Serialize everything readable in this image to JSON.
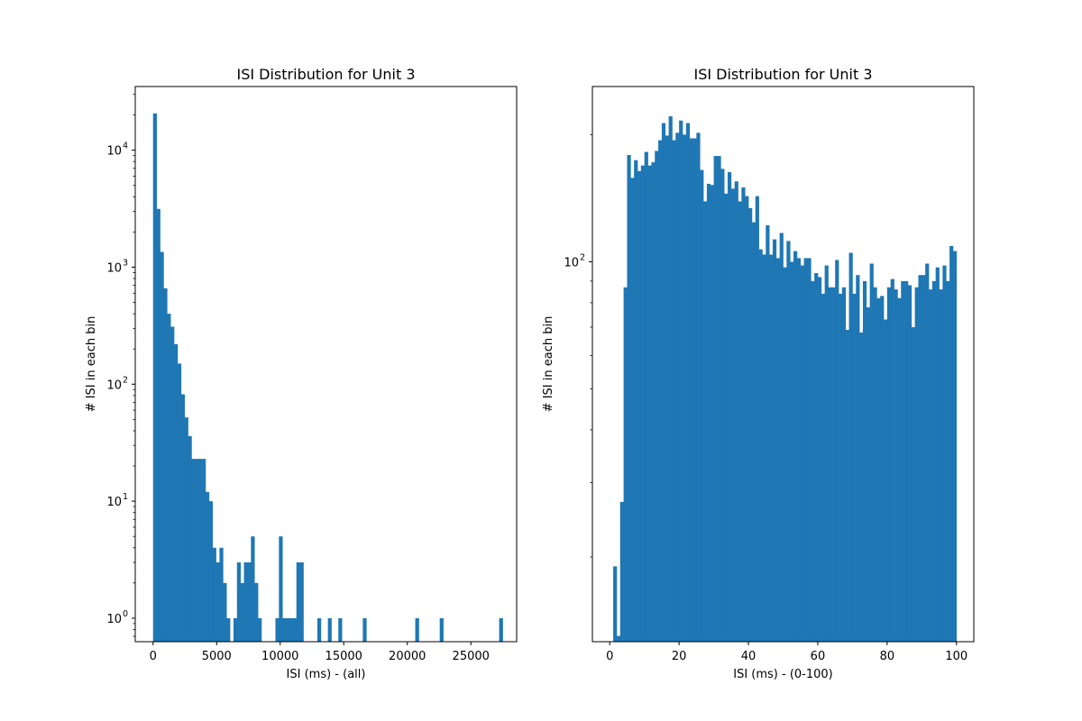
{
  "chart_data": [
    {
      "type": "bar",
      "title": "ISI Distribution for Unit 3",
      "xlabel": "ISI (ms) - (all)",
      "ylabel": "# ISI in each bin",
      "xlim": [
        -1400,
        28600
      ],
      "ylim": [
        0.63,
        35000
      ],
      "yscale": "log",
      "grid": false,
      "bin_start": 0,
      "bin_width": 275,
      "xticks": [
        0,
        5000,
        10000,
        15000,
        20000,
        25000
      ],
      "xtick_labels": [
        "0",
        "5000",
        "10000",
        "15000",
        "20000",
        "25000"
      ],
      "yticks": [
        1,
        10,
        100,
        1000,
        10000
      ],
      "ytick_labels": [
        "10^0",
        "10^1",
        "10^2",
        "10^3",
        "10^4"
      ],
      "color": "#1f77b4",
      "values": [
        20600,
        3150,
        1350,
        660,
        400,
        310,
        220,
        150,
        82,
        52,
        36,
        23,
        23,
        23,
        23,
        12,
        10,
        4,
        3,
        4,
        2,
        1,
        0,
        1,
        3,
        2,
        3,
        3,
        5,
        2,
        1,
        0,
        0,
        0,
        0,
        1,
        5,
        1,
        1,
        1,
        1,
        3,
        3,
        0,
        0,
        0,
        0,
        1,
        0,
        0,
        1,
        0,
        0,
        1,
        0,
        0,
        0,
        0,
        0,
        0,
        1,
        0,
        0,
        0,
        0,
        0,
        0,
        0,
        0,
        0,
        0,
        0,
        0,
        0,
        0,
        1,
        0,
        0,
        0,
        0,
        0,
        0,
        1,
        0,
        0,
        0,
        0,
        0,
        0,
        0,
        0,
        0,
        0,
        0,
        0,
        0,
        0,
        0,
        0,
        1
      ]
    },
    {
      "type": "bar",
      "title": "ISI Distribution for Unit 3",
      "xlabel": "ISI (ms) - (0-100)",
      "ylabel": "# ISI in each bin",
      "xlim": [
        -5,
        105
      ],
      "ylim": [
        12.6,
        260
      ],
      "yscale": "log",
      "grid": false,
      "bin_start": 0,
      "bin_width": 1,
      "xticks": [
        0,
        20,
        40,
        60,
        80,
        100
      ],
      "xtick_labels": [
        "0",
        "20",
        "40",
        "60",
        "80",
        "100"
      ],
      "yticks": [
        100
      ],
      "ytick_labels": [
        "10^2"
      ],
      "color": "#1f77b4",
      "values": [
        0,
        19,
        13,
        27,
        87,
        179,
        158,
        174,
        164,
        169,
        182,
        169,
        172,
        183,
        194,
        213,
        199,
        221,
        194,
        202,
        216,
        200,
        213,
        196,
        196,
        202,
        165,
        139,
        153,
        152,
        178,
        178,
        166,
        145,
        163,
        149,
        155,
        139,
        150,
        143,
        134,
        124,
        143,
        107,
        104,
        122,
        104,
        113,
        102,
        117,
        97,
        112,
        100,
        106,
        102,
        98,
        102,
        102,
        90,
        94,
        92,
        84,
        98,
        87,
        87,
        101,
        84,
        87,
        69,
        105,
        84,
        93,
        68,
        90,
        78,
        99,
        87,
        82,
        83,
        73,
        87,
        91,
        86,
        82,
        90,
        90,
        88,
        70,
        87,
        93,
        93,
        99,
        86,
        90,
        97,
        86,
        98,
        90,
        109,
        106
      ]
    }
  ]
}
